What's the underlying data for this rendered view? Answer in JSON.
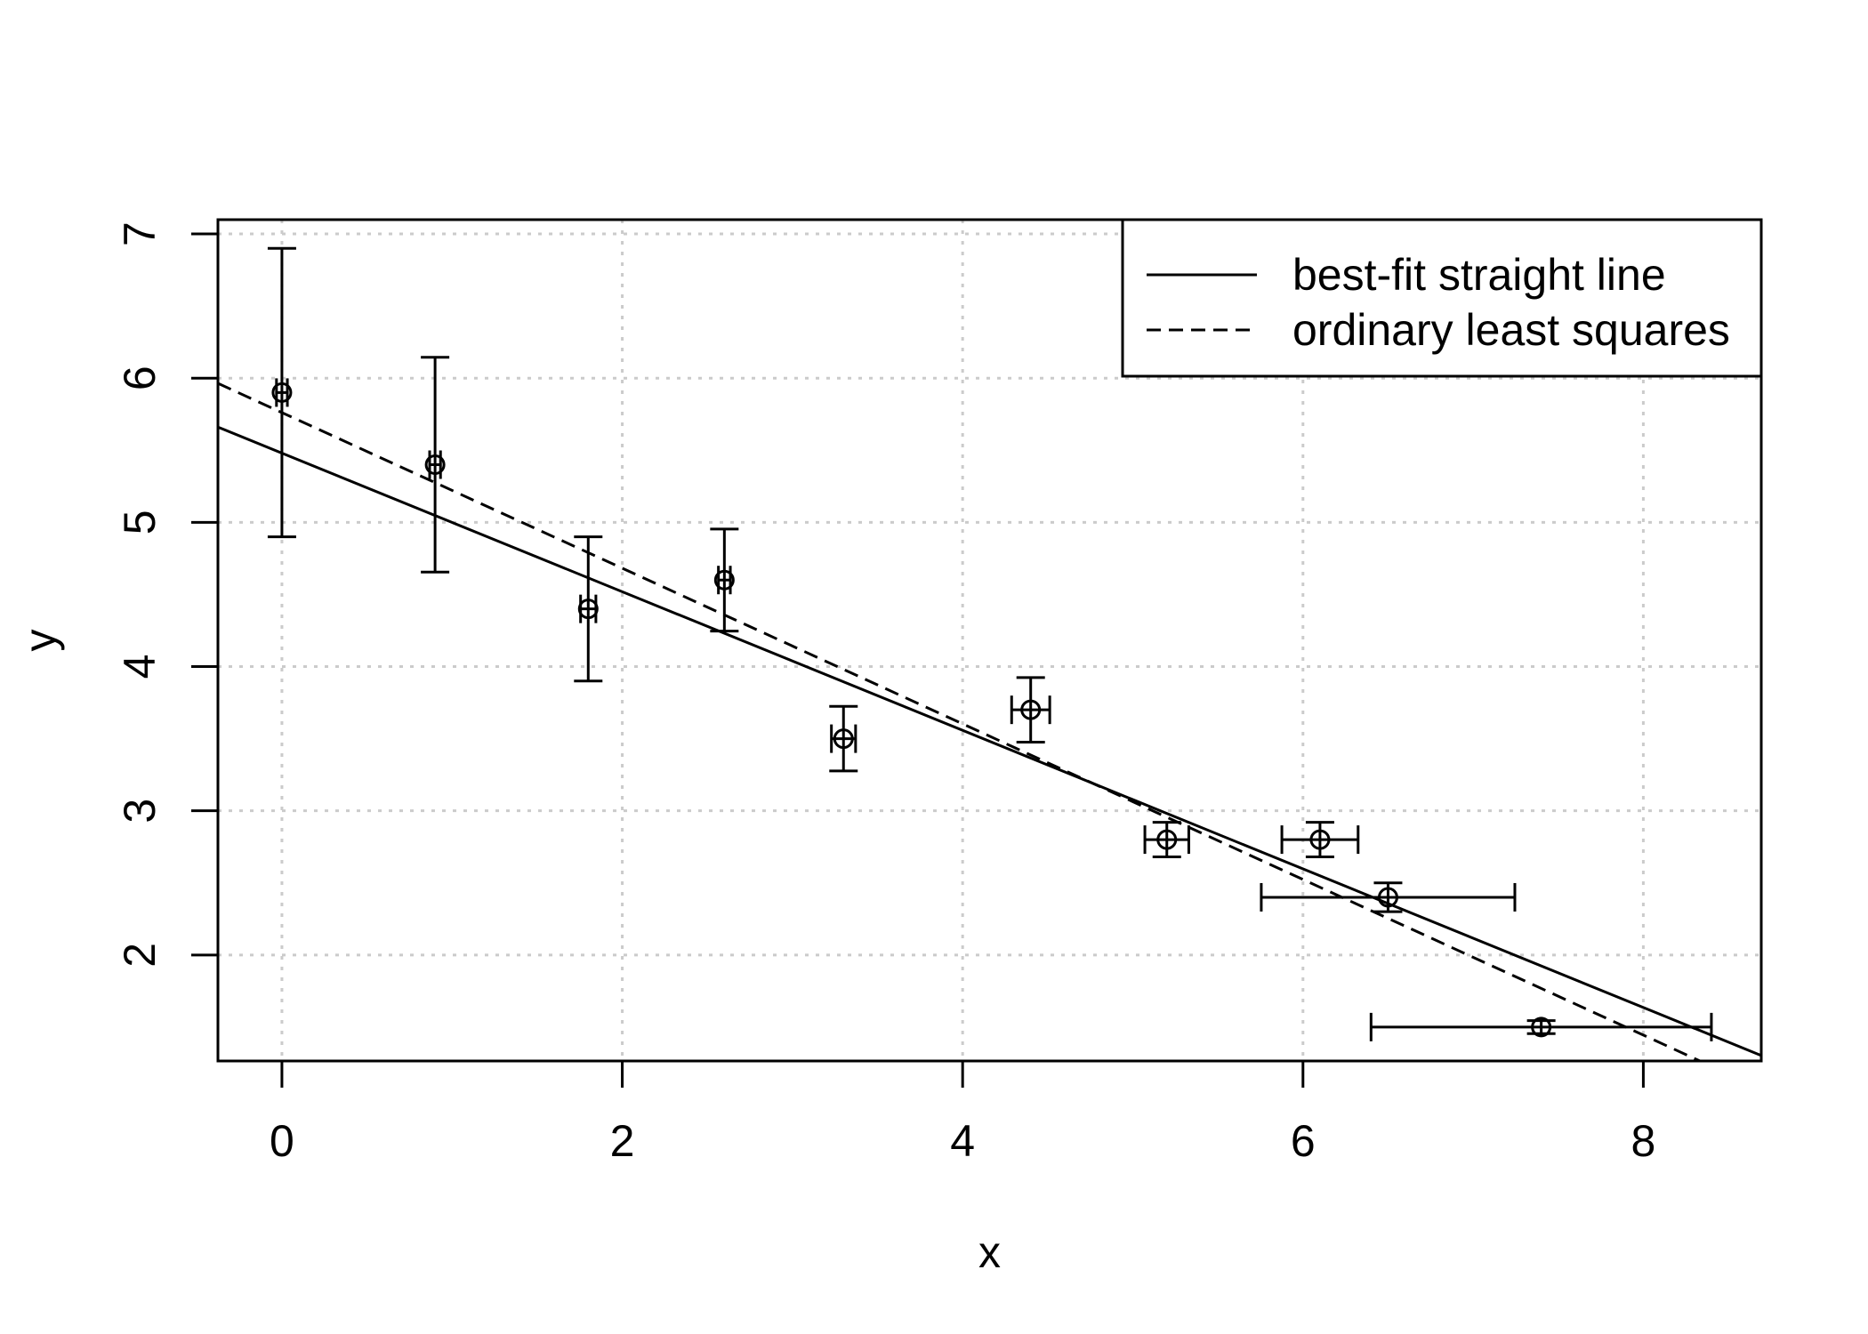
{
  "chart_data": {
    "type": "scatter",
    "title": "",
    "xlabel": "x",
    "ylabel": "y",
    "xlim": [
      -0.376,
      8.693
    ],
    "ylim": [
      1.265,
      7.099
    ],
    "x_ticks": [
      0,
      2,
      4,
      6,
      8
    ],
    "y_ticks": [
      2,
      3,
      4,
      5,
      6,
      7
    ],
    "grid": {
      "show": true,
      "style": "dotted",
      "color": "#CBCBCB"
    },
    "marker": {
      "shape": "open-circle",
      "color": "#000000"
    },
    "points": [
      {
        "x": 0.0,
        "y": 5.9,
        "xerr": 0.032,
        "yerr": 1.0
      },
      {
        "x": 0.9,
        "y": 5.4,
        "xerr": 0.032,
        "yerr": 0.745
      },
      {
        "x": 1.8,
        "y": 4.4,
        "xerr": 0.045,
        "yerr": 0.5
      },
      {
        "x": 2.6,
        "y": 4.6,
        "xerr": 0.035,
        "yerr": 0.354
      },
      {
        "x": 3.3,
        "y": 3.5,
        "xerr": 0.071,
        "yerr": 0.224
      },
      {
        "x": 4.4,
        "y": 3.7,
        "xerr": 0.112,
        "yerr": 0.224
      },
      {
        "x": 5.2,
        "y": 2.8,
        "xerr": 0.129,
        "yerr": 0.12
      },
      {
        "x": 6.1,
        "y": 2.8,
        "xerr": 0.224,
        "yerr": 0.12
      },
      {
        "x": 6.5,
        "y": 2.4,
        "xerr": 0.745,
        "yerr": 0.1
      },
      {
        "x": 7.4,
        "y": 1.5,
        "xerr": 1.0,
        "yerr": 0.045
      }
    ],
    "lines": [
      {
        "label": "best-fit straight line",
        "style": "solid",
        "slope": -0.4805,
        "intercept": 5.48
      },
      {
        "label": "ordinary least squares",
        "style": "dashed",
        "slope": -0.5396,
        "intercept": 5.7612
      }
    ],
    "legend": {
      "position": "top-right",
      "entries": [
        {
          "label": "best-fit straight line",
          "style": "solid"
        },
        {
          "label": "ordinary least squares",
          "style": "dashed"
        }
      ]
    }
  }
}
